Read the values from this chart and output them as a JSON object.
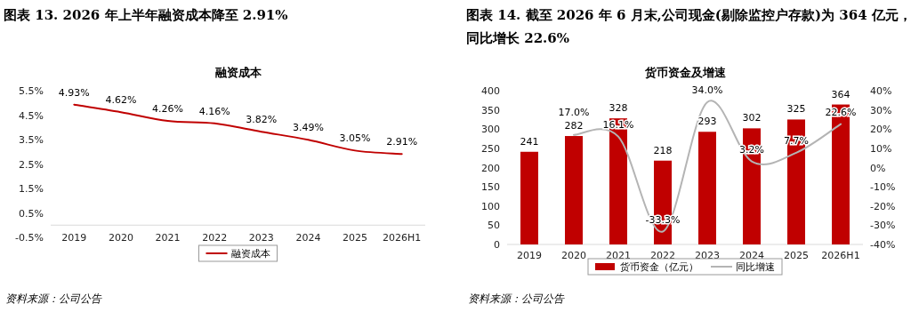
{
  "chart_data": [
    {
      "type": "line",
      "title": "图表 13. 2026 年上半年融资成本降至 2.91%",
      "subtitle": "融资成本",
      "categories": [
        "2019",
        "2020",
        "2021",
        "2022",
        "2023",
        "2024",
        "2025",
        "2026H1"
      ],
      "series": [
        {
          "name": "融资成本",
          "color": "#c00000",
          "values": [
            4.93,
            4.62,
            4.26,
            4.16,
            3.82,
            3.49,
            3.05,
            2.91
          ],
          "value_labels": [
            "4.93%",
            "4.62%",
            "4.26%",
            "4.16%",
            "3.82%",
            "3.49%",
            "3.05%",
            "2.91%"
          ]
        }
      ],
      "ylim": [
        -0.5,
        5.5
      ],
      "yticks": [
        {
          "value": -0.5,
          "label": "-0.5%"
        },
        {
          "value": 0.5,
          "label": "0.5%"
        },
        {
          "value": 1.5,
          "label": "1.5%"
        },
        {
          "value": 2.5,
          "label": "2.5%"
        },
        {
          "value": 3.5,
          "label": "3.5%"
        },
        {
          "value": 4.5,
          "label": "4.5%"
        },
        {
          "value": 5.5,
          "label": "5.5%"
        }
      ],
      "legend": "bottom",
      "annotations": [
        "资料来源：公司公告"
      ]
    },
    {
      "type": "bar",
      "title": "图表 14. 截至 2026 年 6 月末,公司现金(剔除监控户存款)为 364 亿元，同比增长 22.6%",
      "subtitle": "货币资金及增速",
      "categories": [
        "2019",
        "2020",
        "2021",
        "2022",
        "2023",
        "2024",
        "2025",
        "2026H1"
      ],
      "series": [
        {
          "name": "货币资金（亿元）",
          "type": "bar",
          "color": "#c00000",
          "values": [
            241,
            282,
            328,
            218,
            293,
            302,
            325,
            364
          ]
        },
        {
          "name": "同比增速",
          "type": "line",
          "axis": "y2",
          "color": "#b4b4b4",
          "values": [
            null,
            17.0,
            16.1,
            -33.3,
            34.0,
            3.2,
            7.7,
            22.6
          ],
          "value_labels": [
            null,
            "17.0%",
            "16.1%",
            "-33.3%",
            "34.0%",
            "3.2%",
            "7.7%",
            "22.6%"
          ]
        }
      ],
      "data_labels": true,
      "ylim": [
        0,
        400
      ],
      "yticks": [
        0,
        50,
        100,
        150,
        200,
        250,
        300,
        350,
        400
      ],
      "y2lim": [
        -40,
        40
      ],
      "y2ticks": [
        {
          "value": -40,
          "label": "-40%"
        },
        {
          "value": -30,
          "label": "-30%"
        },
        {
          "value": -20,
          "label": "-20%"
        },
        {
          "value": -10,
          "label": "-10%"
        },
        {
          "value": 0,
          "label": "0%"
        },
        {
          "value": 10,
          "label": "10%"
        },
        {
          "value": 20,
          "label": "20%"
        },
        {
          "value": 30,
          "label": "30%"
        },
        {
          "value": 40,
          "label": "40%"
        }
      ],
      "legend": "bottom",
      "annotations": [
        "资料来源：公司公告"
      ]
    }
  ]
}
